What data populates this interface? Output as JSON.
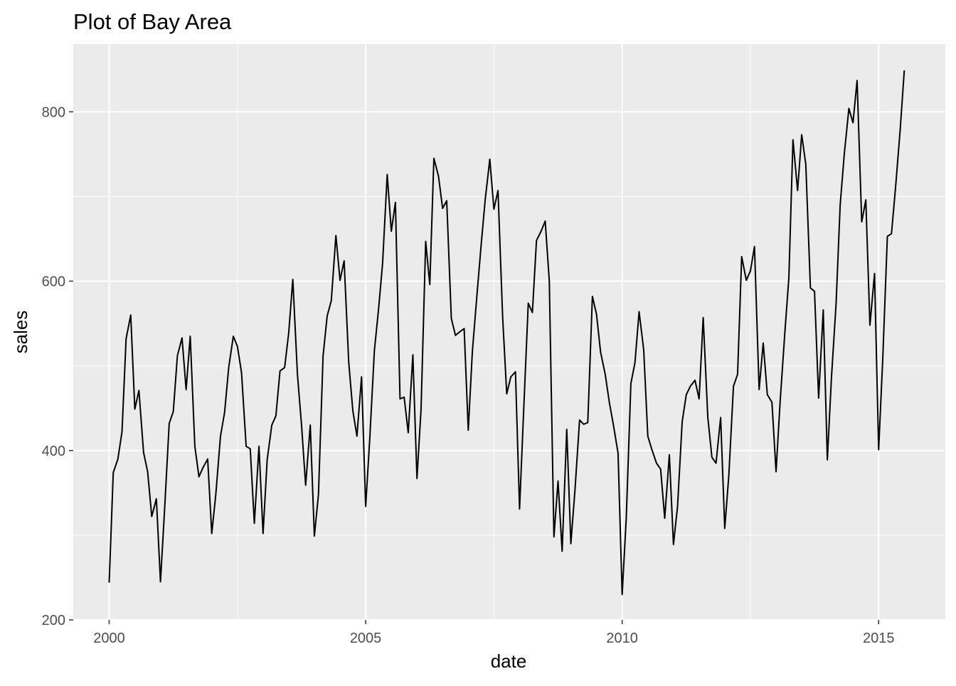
{
  "chart_data": {
    "type": "line",
    "title": "Plot of Bay Area",
    "xlabel": "date",
    "ylabel": "sales",
    "xlim": [
      1999.3,
      2016.3
    ],
    "ylim": [
      200,
      880
    ],
    "x_ticks": [
      {
        "value": 2000,
        "label": "2000"
      },
      {
        "value": 2005,
        "label": "2005"
      },
      {
        "value": 2010,
        "label": "2010"
      },
      {
        "value": 2015,
        "label": "2015"
      }
    ],
    "x_minor_ticks": [
      2002.5,
      2007.5,
      2012.5
    ],
    "y_ticks": [
      {
        "value": 200,
        "label": "200"
      },
      {
        "value": 400,
        "label": "400"
      },
      {
        "value": 600,
        "label": "600"
      },
      {
        "value": 800,
        "label": "800"
      }
    ],
    "y_minor_ticks": [
      300,
      500,
      700
    ],
    "grid": true,
    "legend": "none",
    "colors": {
      "panel": "#ebebeb",
      "grid": "#ffffff",
      "line": "#000000",
      "tick_text": "#4d4d4d"
    },
    "series": [
      {
        "values": [
          [
            2000.0,
            244
          ],
          [
            2000.08,
            374
          ],
          [
            2000.17,
            390
          ],
          [
            2000.25,
            422
          ],
          [
            2000.33,
            532
          ],
          [
            2000.42,
            560
          ],
          [
            2000.5,
            449
          ],
          [
            2000.58,
            471
          ],
          [
            2000.67,
            398
          ],
          [
            2000.75,
            375
          ],
          [
            2000.83,
            322
          ],
          [
            2000.92,
            343
          ],
          [
            2001.0,
            245
          ],
          [
            2001.08,
            330
          ],
          [
            2001.17,
            432
          ],
          [
            2001.25,
            446
          ],
          [
            2001.33,
            512
          ],
          [
            2001.42,
            533
          ],
          [
            2001.5,
            472
          ],
          [
            2001.58,
            535
          ],
          [
            2001.67,
            405
          ],
          [
            2001.75,
            369
          ],
          [
            2001.83,
            380
          ],
          [
            2001.92,
            390
          ],
          [
            2002.0,
            302
          ],
          [
            2002.08,
            349
          ],
          [
            2002.17,
            417
          ],
          [
            2002.25,
            445
          ],
          [
            2002.33,
            498
          ],
          [
            2002.42,
            535
          ],
          [
            2002.5,
            523
          ],
          [
            2002.58,
            492
          ],
          [
            2002.67,
            405
          ],
          [
            2002.75,
            402
          ],
          [
            2002.83,
            314
          ],
          [
            2002.92,
            405
          ],
          [
            2003.0,
            302
          ],
          [
            2003.08,
            389
          ],
          [
            2003.17,
            430
          ],
          [
            2003.25,
            441
          ],
          [
            2003.33,
            494
          ],
          [
            2003.42,
            498
          ],
          [
            2003.5,
            539
          ],
          [
            2003.58,
            602
          ],
          [
            2003.67,
            490
          ],
          [
            2003.75,
            430
          ],
          [
            2003.83,
            359
          ],
          [
            2003.92,
            430
          ],
          [
            2004.0,
            299
          ],
          [
            2004.08,
            348
          ],
          [
            2004.17,
            512
          ],
          [
            2004.25,
            559
          ],
          [
            2004.33,
            577
          ],
          [
            2004.42,
            654
          ],
          [
            2004.5,
            601
          ],
          [
            2004.58,
            624
          ],
          [
            2004.67,
            504
          ],
          [
            2004.75,
            447
          ],
          [
            2004.83,
            417
          ],
          [
            2004.92,
            487
          ],
          [
            2005.0,
            334
          ],
          [
            2005.08,
            414
          ],
          [
            2005.17,
            518
          ],
          [
            2005.25,
            566
          ],
          [
            2005.33,
            621
          ],
          [
            2005.42,
            726
          ],
          [
            2005.5,
            659
          ],
          [
            2005.58,
            693
          ],
          [
            2005.67,
            461
          ],
          [
            2005.75,
            463
          ],
          [
            2005.83,
            421
          ],
          [
            2005.92,
            513
          ],
          [
            2006.0,
            367
          ],
          [
            2006.08,
            449
          ],
          [
            2006.17,
            647
          ],
          [
            2006.25,
            596
          ],
          [
            2006.33,
            745
          ],
          [
            2006.42,
            724
          ],
          [
            2006.5,
            686
          ],
          [
            2006.58,
            695
          ],
          [
            2006.67,
            556
          ],
          [
            2006.75,
            536
          ],
          [
            2006.83,
            540
          ],
          [
            2006.92,
            544
          ],
          [
            2007.0,
            424
          ],
          [
            2007.08,
            517
          ],
          [
            2007.17,
            584
          ],
          [
            2007.25,
            642
          ],
          [
            2007.33,
            696
          ],
          [
            2007.42,
            744
          ],
          [
            2007.5,
            685
          ],
          [
            2007.58,
            707
          ],
          [
            2007.67,
            558
          ],
          [
            2007.75,
            467
          ],
          [
            2007.83,
            487
          ],
          [
            2007.92,
            493
          ],
          [
            2008.0,
            331
          ],
          [
            2008.08,
            447
          ],
          [
            2008.17,
            574
          ],
          [
            2008.25,
            563
          ],
          [
            2008.33,
            648
          ],
          [
            2008.42,
            659
          ],
          [
            2008.5,
            671
          ],
          [
            2008.58,
            600
          ],
          [
            2008.67,
            298
          ],
          [
            2008.75,
            364
          ],
          [
            2008.83,
            281
          ],
          [
            2008.92,
            425
          ],
          [
            2009.0,
            290
          ],
          [
            2009.08,
            353
          ],
          [
            2009.17,
            436
          ],
          [
            2009.25,
            431
          ],
          [
            2009.33,
            433
          ],
          [
            2009.42,
            582
          ],
          [
            2009.5,
            561
          ],
          [
            2009.58,
            516
          ],
          [
            2009.67,
            490
          ],
          [
            2009.75,
            457
          ],
          [
            2009.83,
            430
          ],
          [
            2009.92,
            397
          ],
          [
            2010.0,
            230
          ],
          [
            2010.08,
            320
          ],
          [
            2010.17,
            479
          ],
          [
            2010.25,
            504
          ],
          [
            2010.33,
            564
          ],
          [
            2010.42,
            519
          ],
          [
            2010.5,
            417
          ],
          [
            2010.58,
            401
          ],
          [
            2010.67,
            385
          ],
          [
            2010.75,
            378
          ],
          [
            2010.83,
            320
          ],
          [
            2010.92,
            395
          ],
          [
            2011.0,
            289
          ],
          [
            2011.08,
            334
          ],
          [
            2011.17,
            434
          ],
          [
            2011.25,
            466
          ],
          [
            2011.33,
            476
          ],
          [
            2011.42,
            483
          ],
          [
            2011.5,
            461
          ],
          [
            2011.58,
            557
          ],
          [
            2011.67,
            439
          ],
          [
            2011.75,
            392
          ],
          [
            2011.83,
            385
          ],
          [
            2011.92,
            439
          ],
          [
            2012.0,
            308
          ],
          [
            2012.08,
            371
          ],
          [
            2012.17,
            476
          ],
          [
            2012.25,
            490
          ],
          [
            2012.33,
            629
          ],
          [
            2012.42,
            601
          ],
          [
            2012.5,
            612
          ],
          [
            2012.58,
            641
          ],
          [
            2012.67,
            472
          ],
          [
            2012.75,
            527
          ],
          [
            2012.83,
            466
          ],
          [
            2012.92,
            457
          ],
          [
            2013.0,
            375
          ],
          [
            2013.08,
            458
          ],
          [
            2013.17,
            538
          ],
          [
            2013.25,
            604
          ],
          [
            2013.33,
            767
          ],
          [
            2013.42,
            707
          ],
          [
            2013.5,
            773
          ],
          [
            2013.58,
            738
          ],
          [
            2013.67,
            592
          ],
          [
            2013.75,
            588
          ],
          [
            2013.83,
            462
          ],
          [
            2013.92,
            566
          ],
          [
            2014.0,
            389
          ],
          [
            2014.08,
            486
          ],
          [
            2014.17,
            573
          ],
          [
            2014.25,
            690
          ],
          [
            2014.33,
            750
          ],
          [
            2014.42,
            804
          ],
          [
            2014.5,
            787
          ],
          [
            2014.58,
            837
          ],
          [
            2014.67,
            670
          ],
          [
            2014.75,
            696
          ],
          [
            2014.83,
            548
          ],
          [
            2014.92,
            609
          ],
          [
            2015.0,
            401
          ],
          [
            2015.08,
            508
          ],
          [
            2015.17,
            653
          ],
          [
            2015.25,
            656
          ],
          [
            2015.33,
            711
          ],
          [
            2015.42,
            779
          ],
          [
            2015.5,
            849
          ]
        ]
      }
    ]
  }
}
